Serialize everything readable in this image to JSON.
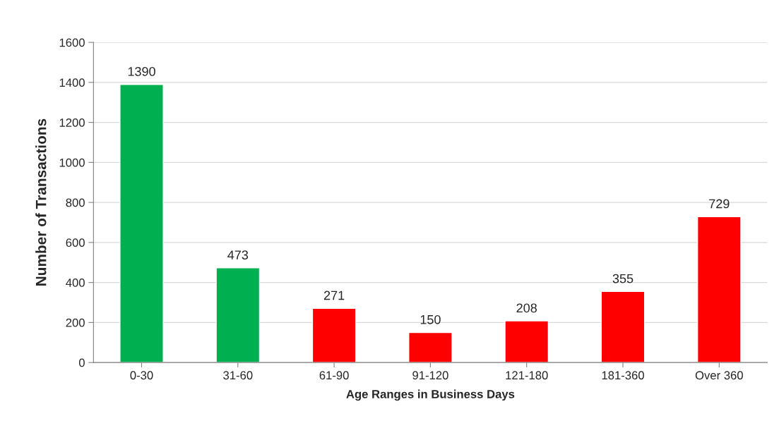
{
  "chart_data": {
    "type": "bar",
    "xlabel": "Age Ranges in Business Days",
    "ylabel": "Number of Transactions",
    "categories": [
      "0-30",
      "31-60",
      "61-90",
      "91-120",
      "121-180",
      "181-360",
      "Over 360"
    ],
    "values": [
      1390,
      473,
      271,
      150,
      208,
      355,
      729
    ],
    "colors": [
      "#00b050",
      "#00b050",
      "#ff0000",
      "#ff0000",
      "#ff0000",
      "#ff0000",
      "#ff0000"
    ],
    "ylim": [
      0,
      1600
    ],
    "yticks": [
      0,
      200,
      400,
      600,
      800,
      1000,
      1200,
      1400,
      1600
    ],
    "grid": "y",
    "data_labels": true
  }
}
